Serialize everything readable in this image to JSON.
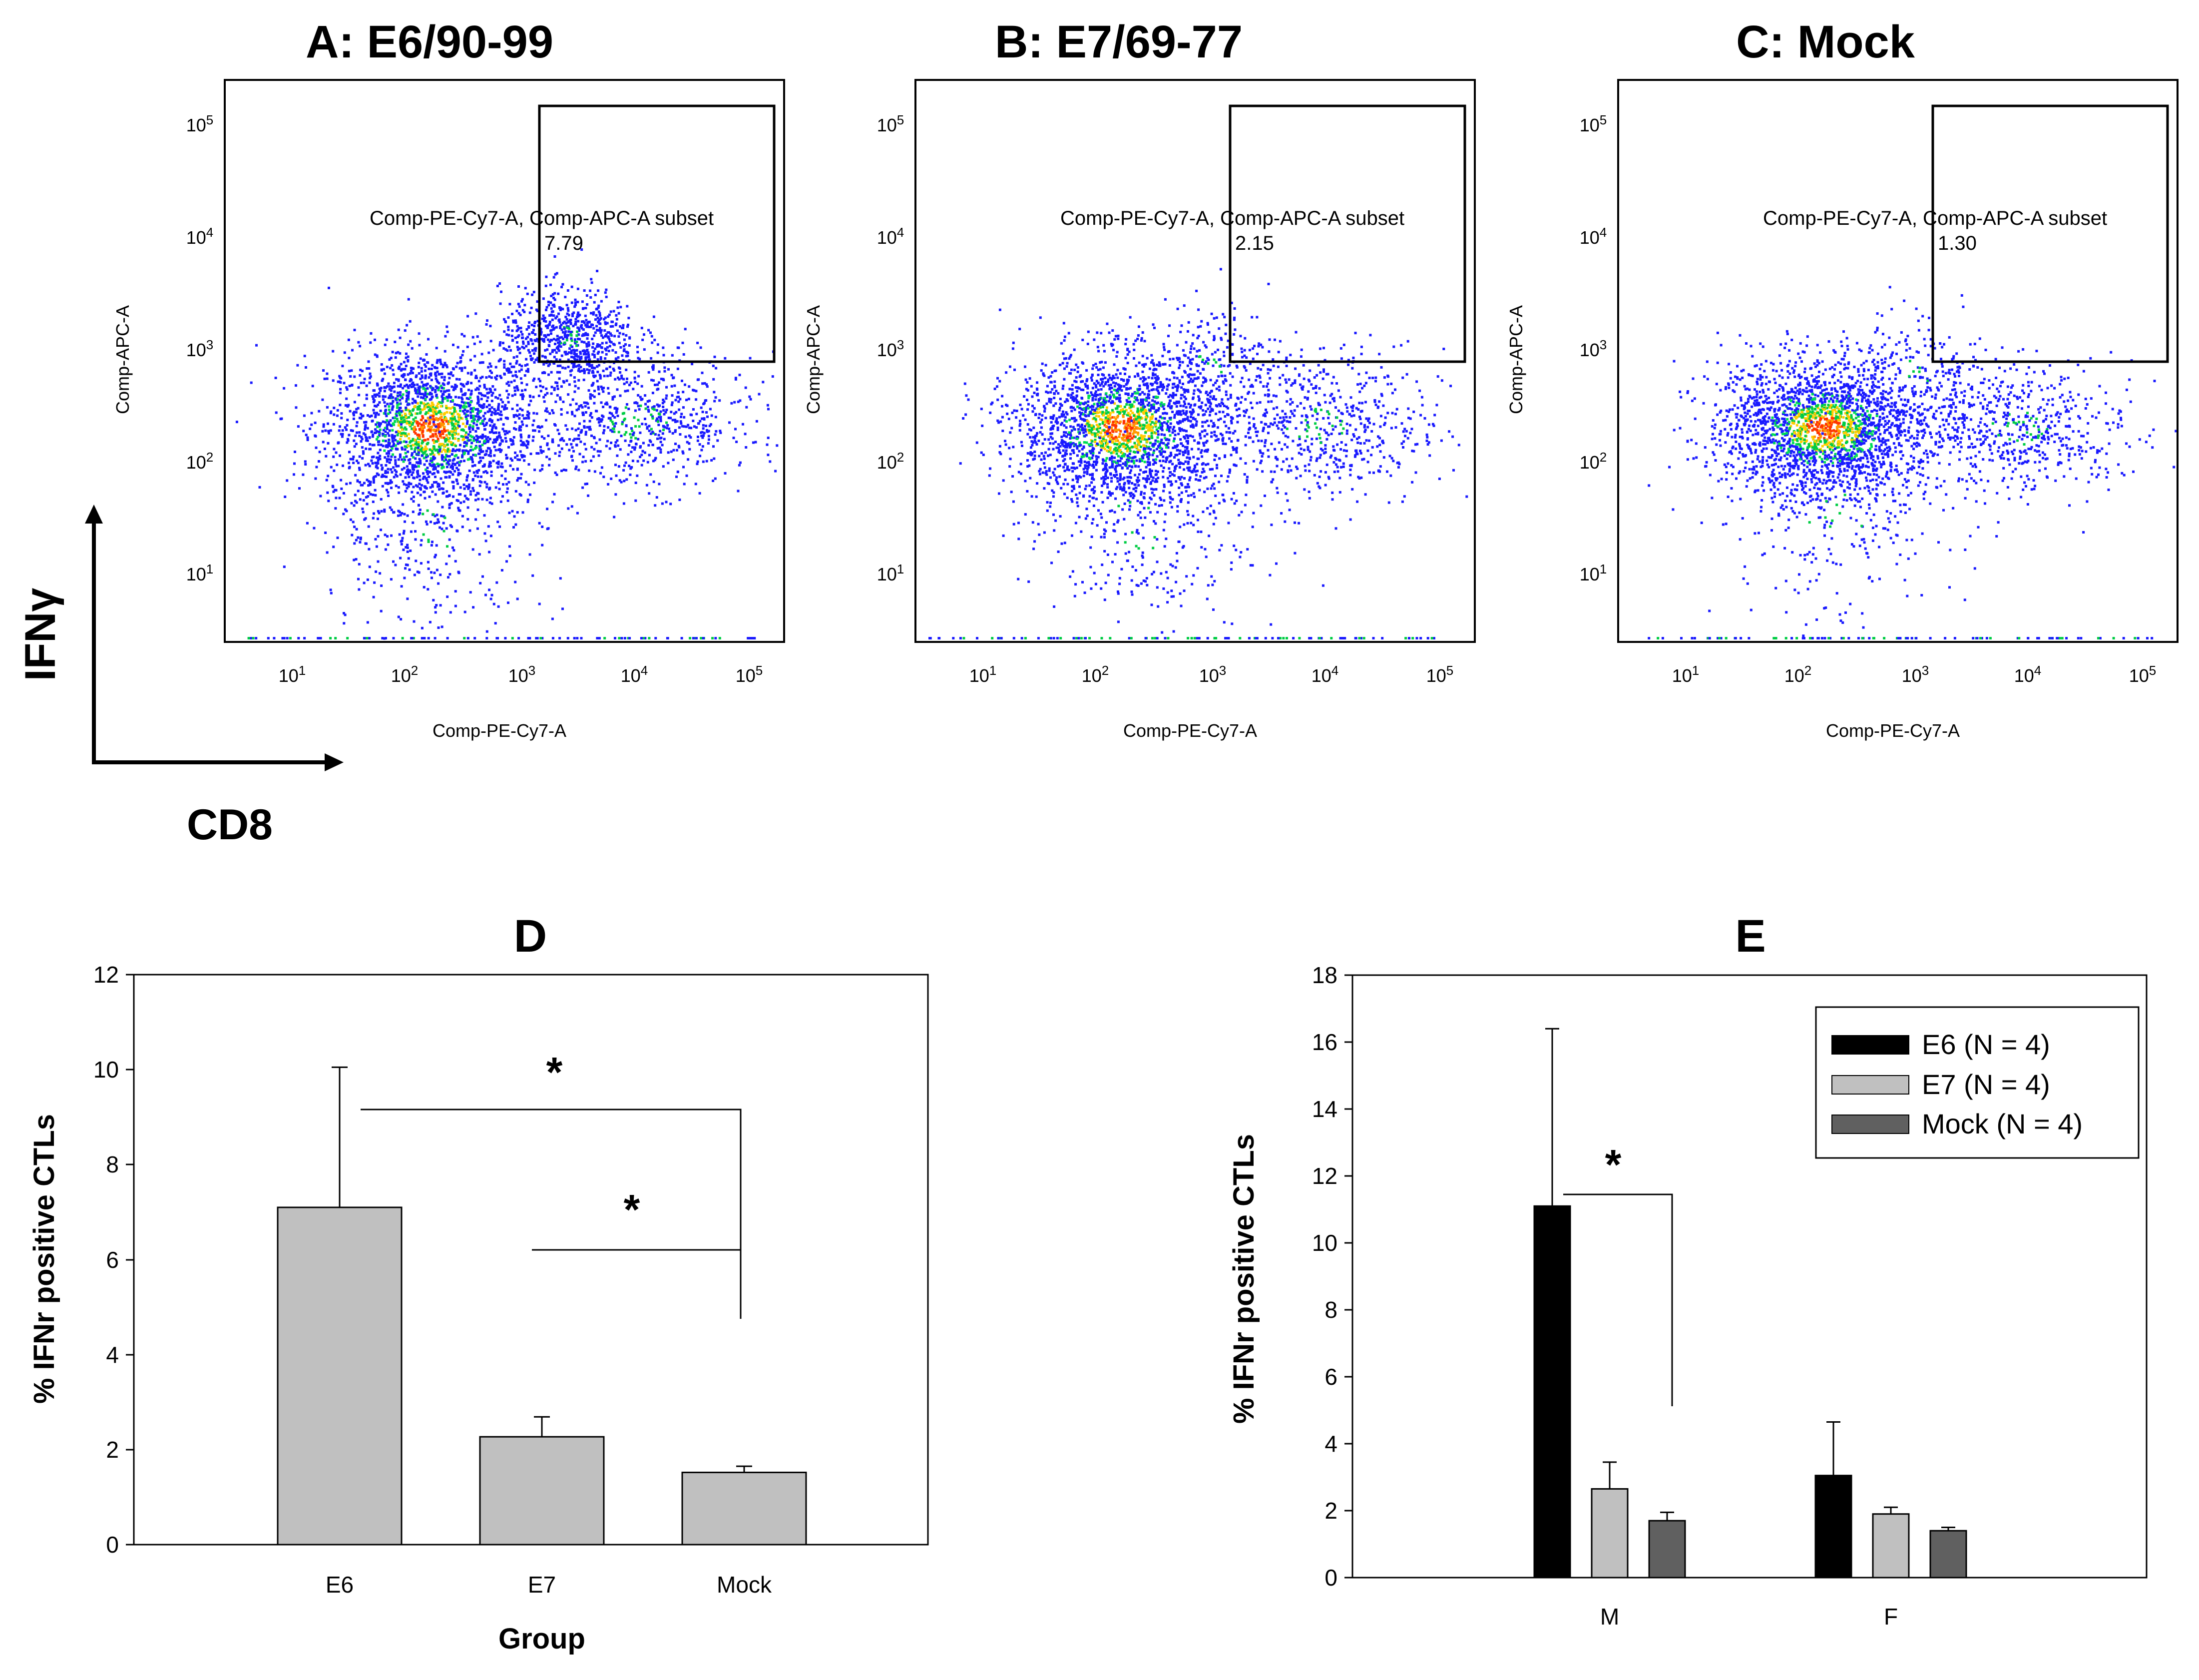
{
  "flow_panels": [
    {
      "title": "A: E6/90-99",
      "gate_label": "Comp-PE-Cy7-A, Comp-APC-A subset",
      "gate_value": "7.79",
      "xlabel": "Comp-PE-Cy7-A",
      "ylabel": "Comp-APC-A",
      "clusters": [
        {
          "cx": 2.2,
          "cy": 2.3,
          "sx": 0.45,
          "sy": 0.35,
          "n": 2200
        },
        {
          "cx": 3.4,
          "cy": 3.1,
          "sx": 0.3,
          "sy": 0.22,
          "n": 700
        },
        {
          "cx": 4.0,
          "cy": 2.35,
          "sx": 0.5,
          "sy": 0.3,
          "n": 700
        },
        {
          "cx": 2.2,
          "cy": 1.4,
          "sx": 0.5,
          "sy": 0.5,
          "n": 300
        }
      ]
    },
    {
      "title": "B: E7/69-77",
      "gate_label": "Comp-PE-Cy7-A, Comp-APC-A subset",
      "gate_value": "2.15",
      "xlabel": "Comp-PE-Cy7-A",
      "ylabel": "Comp-APC-A",
      "clusters": [
        {
          "cx": 2.2,
          "cy": 2.3,
          "sx": 0.45,
          "sy": 0.33,
          "n": 2200
        },
        {
          "cx": 3.9,
          "cy": 2.3,
          "sx": 0.55,
          "sy": 0.35,
          "n": 650
        },
        {
          "cx": 3.0,
          "cy": 2.9,
          "sx": 0.3,
          "sy": 0.25,
          "n": 200
        },
        {
          "cx": 2.3,
          "cy": 1.4,
          "sx": 0.5,
          "sy": 0.5,
          "n": 300
        }
      ]
    },
    {
      "title": "C: Mock",
      "gate_label": "Comp-PE-Cy7-A, Comp-APC-A subset",
      "gate_value": "1.30",
      "xlabel": "Comp-PE-Cy7-A",
      "ylabel": "Comp-APC-A",
      "clusters": [
        {
          "cx": 2.2,
          "cy": 2.3,
          "sx": 0.45,
          "sy": 0.3,
          "n": 2300
        },
        {
          "cx": 3.9,
          "cy": 2.3,
          "sx": 0.5,
          "sy": 0.3,
          "n": 600
        },
        {
          "cx": 3.0,
          "cy": 2.8,
          "sx": 0.3,
          "sy": 0.25,
          "n": 150
        },
        {
          "cx": 2.3,
          "cy": 1.5,
          "sx": 0.5,
          "sy": 0.45,
          "n": 250
        }
      ]
    }
  ],
  "flow_axis": {
    "ticks": [
      {
        "base": "10",
        "exp": "1"
      },
      {
        "base": "10",
        "exp": "2"
      },
      {
        "base": "10",
        "exp": "3"
      },
      {
        "base": "10",
        "exp": "4"
      },
      {
        "base": "10",
        "exp": "5"
      }
    ]
  },
  "overall_axes": {
    "y": "IFNγ",
    "x": "CD8"
  },
  "chart_data": [
    {
      "type": "bar",
      "title": "D",
      "categories": [
        "E6",
        "E7",
        "Mock"
      ],
      "values": [
        7.1,
        2.27,
        1.52
      ],
      "errors": [
        2.95,
        0.42,
        0.13
      ],
      "ylim": [
        0,
        12
      ],
      "yticks": [
        "0",
        "2",
        "4",
        "6",
        "8",
        "10",
        "12"
      ],
      "xlabel": "Group",
      "ylabel": "% IFNr positive CTLs",
      "color": "#c0c0c0",
      "significance": [
        "*",
        "*"
      ]
    },
    {
      "type": "bar",
      "title": "E",
      "categories": [
        "M",
        "F"
      ],
      "series": [
        {
          "name": "E6 (N = 4)",
          "color": "#000000",
          "values": [
            11.1,
            3.05
          ],
          "errors": [
            5.3,
            1.6
          ]
        },
        {
          "name": "E7 (N = 4)",
          "color": "#c0c0c0",
          "values": [
            2.65,
            1.9
          ],
          "errors": [
            0.8,
            0.2
          ]
        },
        {
          "name": "Mock (N = 4)",
          "color": "#606060",
          "values": [
            1.7,
            1.4
          ],
          "errors": [
            0.25,
            0.1
          ]
        }
      ],
      "ylim": [
        0,
        18
      ],
      "yticks": [
        "0",
        "2",
        "4",
        "6",
        "8",
        "10",
        "12",
        "14",
        "16",
        "18"
      ],
      "ylabel": "% IFNr positive CTLs",
      "legend": "top-right",
      "significance": [
        "*"
      ]
    }
  ]
}
